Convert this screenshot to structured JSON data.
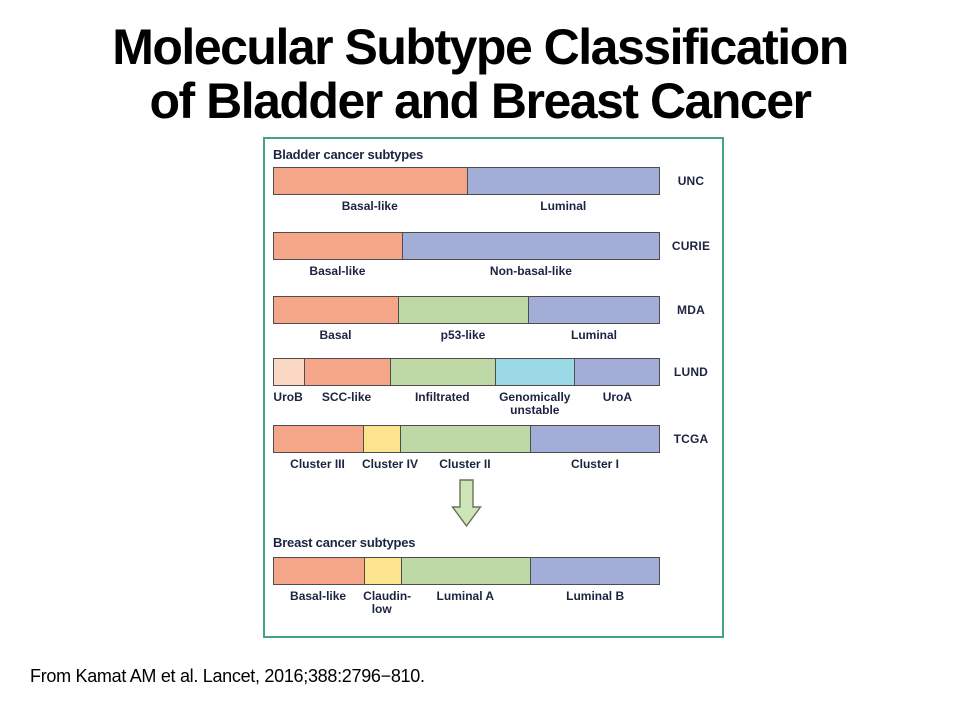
{
  "slide": {
    "title_lines": [
      "Molecular Subtype Classification",
      "of Bladder and Breast Cancer"
    ],
    "citation": "From Kamat AM et al. Lancet, 2016;388:2796−810."
  },
  "figure": {
    "bladder_section_heading": "Bladder cancer subtypes",
    "breast_section_heading": "Breast cancer subtypes",
    "arrow_icon": "down-arrow",
    "colors": {
      "salmon": "#f5a689",
      "blue": "#a2aed8",
      "green": "#bed9a6",
      "cyan": "#9bd9e6",
      "pale_pink": "#fbd8c3",
      "yellow": "#fce48e",
      "panel_border": "#44a47e",
      "bar_border": "#4d4d4d",
      "label_text": "#1b2440",
      "arrow_fill": "#cee5b8",
      "arrow_outline": "#6b705c"
    },
    "bladder_rows": [
      {
        "classification": "UNC",
        "segments": [
          {
            "label": "Basal-like",
            "color": "salmon",
            "width_pct": 50
          },
          {
            "label": "Luminal",
            "color": "blue",
            "width_pct": 50
          }
        ]
      },
      {
        "classification": "CURIE",
        "segments": [
          {
            "label": "Basal-like",
            "color": "salmon",
            "width_pct": 33.3
          },
          {
            "label": "Non-basal-like",
            "color": "blue",
            "width_pct": 66.7
          }
        ]
      },
      {
        "classification": "MDA",
        "segments": [
          {
            "label": "Basal",
            "color": "salmon",
            "width_pct": 32.3
          },
          {
            "label": "p53-like",
            "color": "green",
            "width_pct": 33.6
          },
          {
            "label": "Luminal",
            "color": "blue",
            "width_pct": 34.1
          }
        ]
      },
      {
        "classification": "LUND",
        "segments": [
          {
            "label": "UroB",
            "color": "pale_pink",
            "width_pct": 7.8
          },
          {
            "label": "SCC-like",
            "color": "salmon",
            "width_pct": 22.4
          },
          {
            "label": "Infiltrated",
            "color": "green",
            "width_pct": 27.1
          },
          {
            "label": "Genomically unstable",
            "color": "cyan",
            "width_pct": 20.7,
            "wrap": true
          },
          {
            "label": "UroA",
            "color": "blue",
            "width_pct": 22.0
          }
        ]
      },
      {
        "classification": "TCGA",
        "segments": [
          {
            "label": "Cluster III",
            "color": "salmon",
            "width_pct": 23.0
          },
          {
            "label": "Cluster IV",
            "color": "yellow",
            "width_pct": 9.8
          },
          {
            "label": "Cluster II",
            "color": "green",
            "width_pct": 33.6
          },
          {
            "label": "Cluster I",
            "color": "blue",
            "width_pct": 33.6
          }
        ]
      }
    ],
    "breast_row": {
      "segments": [
        {
          "label": "Basal-like",
          "color": "salmon",
          "width_pct": 23.3
        },
        {
          "label": "Claudin-low",
          "color": "yellow",
          "width_pct": 9.6,
          "wrap": true
        },
        {
          "label": "Luminal A",
          "color": "green",
          "width_pct": 33.6
        },
        {
          "label": "Luminal B",
          "color": "blue",
          "width_pct": 33.5
        }
      ]
    }
  }
}
